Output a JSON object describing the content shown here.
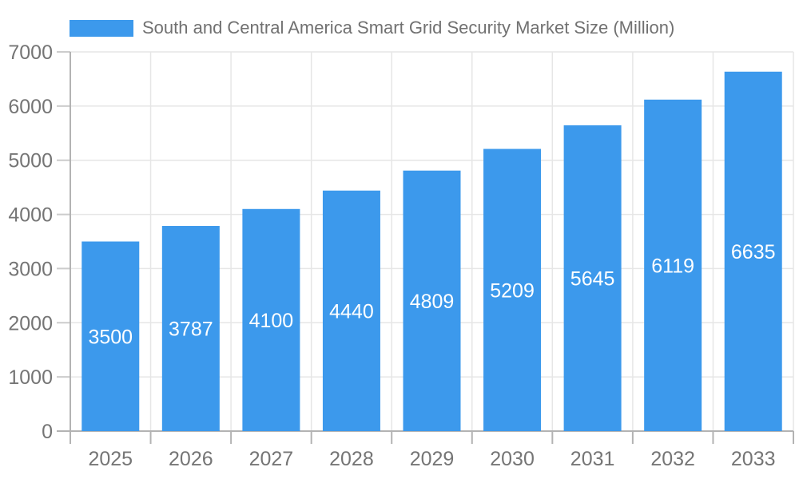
{
  "legend": {
    "label": "South and Central America Smart Grid Security Market Size (Million)",
    "swatch_color": "#3C99EC"
  },
  "chart_data": {
    "type": "bar",
    "title": "South and Central America Smart Grid Security Market Size (Million)",
    "categories": [
      "2025",
      "2026",
      "2027",
      "2028",
      "2029",
      "2030",
      "2031",
      "2032",
      "2033"
    ],
    "series": [
      {
        "name": "South and Central America Smart Grid Security Market Size (Million)",
        "values": [
          3500,
          3787,
          4100,
          4440,
          4809,
          5209,
          5645,
          6119,
          6635
        ]
      }
    ],
    "xlabel": "",
    "ylabel": "",
    "ylim": [
      0,
      7000
    ],
    "ytick_step": 1000,
    "yticks": [
      0,
      1000,
      2000,
      3000,
      4000,
      5000,
      6000,
      7000
    ],
    "grid": true,
    "legend_position": "top",
    "bar_labels_inside": true,
    "colors": {
      "bar": "#3C99EC",
      "bar_label": "#ffffff",
      "axis_text": "#757575",
      "grid": "#e6e6e6",
      "tick": "#cccccc",
      "axis_line": "#b3b3b3"
    }
  }
}
